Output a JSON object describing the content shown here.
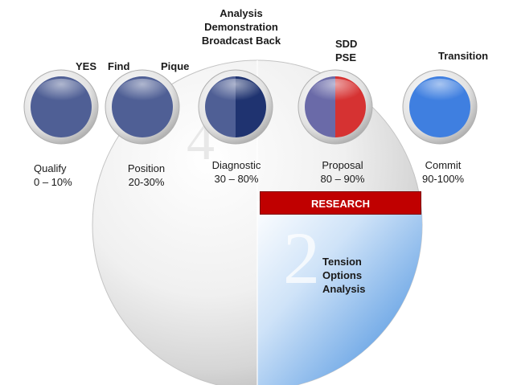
{
  "diagram": {
    "stages": [
      {
        "name": "Qualify",
        "range": "0 – 10%",
        "style": "solid",
        "color": "#4f5f95"
      },
      {
        "name": "Position",
        "range": "20-30%",
        "style": "solid",
        "color": "#4f5f95"
      },
      {
        "name": "Diagnostic",
        "range": "30 – 80%",
        "style": "split",
        "color_left": "#4f5f95",
        "color_right": "#1f3370"
      },
      {
        "name": "Proposal",
        "range": "80 – 90%",
        "style": "split",
        "color_left": "#6a6aa8",
        "color_right": "#d63232"
      },
      {
        "name": "Commit",
        "range": "90-100%",
        "style": "solid",
        "color": "#3f7fe0"
      }
    ],
    "top_labels": {
      "yes": "YES",
      "find": "Find",
      "pique": "Pique",
      "analysis": [
        "Analysis",
        "Demonstration",
        "Broadcast Back"
      ],
      "sdd_pse": [
        "SDD",
        "PSE"
      ],
      "transition": "Transition"
    },
    "research_label": "RESEARCH",
    "research_color": "#c00000",
    "tension_labels": [
      "Tension",
      "Options",
      "Analysis"
    ],
    "big_numerals": [
      "4",
      "2"
    ],
    "accent_blue": "#3d7fe0"
  }
}
